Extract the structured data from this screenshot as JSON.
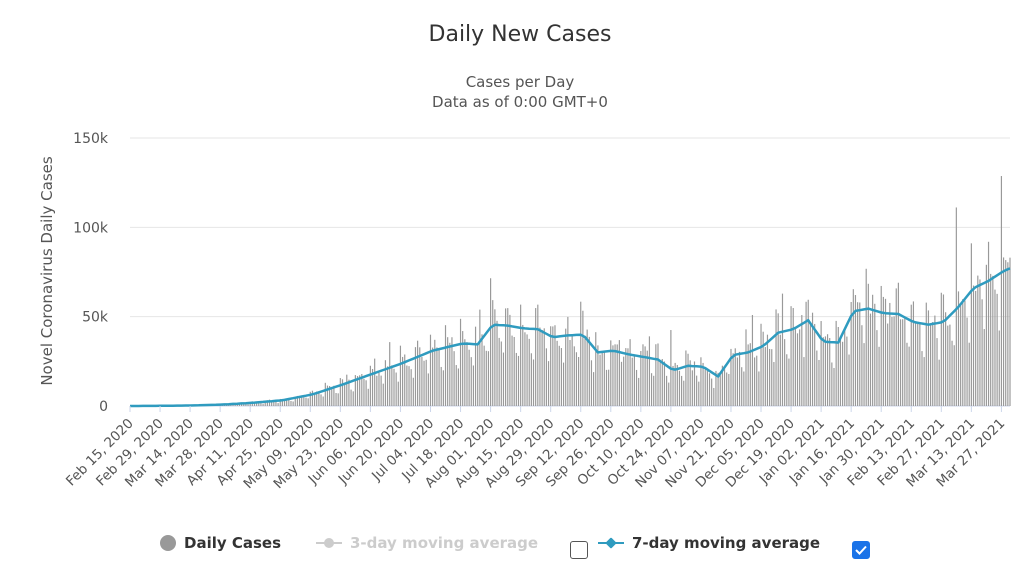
{
  "chart_data": {
    "type": "bar",
    "title": "Daily New Cases",
    "subtitle_line1": "Cases per Day",
    "subtitle_line2": "Data as of 0:00 GMT+0",
    "ylabel": "Novel Coronavirus Daily Cases",
    "xlabel": "",
    "ylim": [
      0,
      150000
    ],
    "y_ticks": [
      "0",
      "50k",
      "100k",
      "150k"
    ],
    "y_tick_values": [
      0,
      50000,
      100000,
      150000
    ],
    "grid": true,
    "x_start": "2020-02-15",
    "x_end": "2021-03-31",
    "x_ticks": [
      "Feb 15, 2020",
      "Feb 29, 2020",
      "Mar 14, 2020",
      "Mar 28, 2020",
      "Apr 11, 2020",
      "Apr 25, 2020",
      "May 09, 2020",
      "May 23, 2020",
      "Jun 06, 2020",
      "Jun 20, 2020",
      "Jul 04, 2020",
      "Jul 18, 2020",
      "Aug 01, 2020",
      "Aug 15, 2020",
      "Aug 29, 2020",
      "Sep 12, 2020",
      "Sep 26, 2020",
      "Oct 10, 2020",
      "Oct 24, 2020",
      "Nov 07, 2020",
      "Nov 21, 2020",
      "Dec 05, 2020",
      "Dec 19, 2020",
      "Jan 02, 2021",
      "Jan 16, 2021",
      "Jan 30, 2021",
      "Feb 13, 2021",
      "Feb 27, 2021",
      "Mar 13, 2021",
      "Mar 27, 2021"
    ],
    "moving_average_7day": {
      "dates": [
        "2020-02-15",
        "2020-03-01",
        "2020-03-15",
        "2020-03-29",
        "2020-04-12",
        "2020-04-26",
        "2020-05-10",
        "2020-05-24",
        "2020-06-07",
        "2020-06-21",
        "2020-07-05",
        "2020-07-19",
        "2020-07-26",
        "2020-08-02",
        "2020-08-09",
        "2020-08-16",
        "2020-08-23",
        "2020-08-30",
        "2020-09-06",
        "2020-09-13",
        "2020-09-20",
        "2020-09-27",
        "2020-10-04",
        "2020-10-11",
        "2020-10-18",
        "2020-10-25",
        "2020-11-01",
        "2020-11-08",
        "2020-11-15",
        "2020-11-22",
        "2020-11-29",
        "2020-12-06",
        "2020-12-13",
        "2020-12-20",
        "2020-12-27",
        "2021-01-03",
        "2021-01-10",
        "2021-01-17",
        "2021-01-24",
        "2021-01-31",
        "2021-02-07",
        "2021-02-14",
        "2021-02-21",
        "2021-02-28",
        "2021-03-07",
        "2021-03-14",
        "2021-03-21",
        "2021-03-28",
        "2021-03-31"
      ],
      "values": [
        0,
        100,
        300,
        800,
        1800,
        3200,
        6500,
        12000,
        18000,
        24000,
        31000,
        35000,
        34500,
        45500,
        45000,
        43500,
        43000,
        38500,
        39500,
        40000,
        30000,
        31000,
        29000,
        27500,
        26000,
        20000,
        22500,
        22000,
        16500,
        28500,
        30000,
        33500,
        41000,
        43000,
        48000,
        36000,
        35500,
        53000,
        54500,
        52000,
        51500,
        47000,
        45500,
        47000,
        55500,
        66000,
        70000,
        75500,
        77000
      ]
    },
    "daily_bar_count": 411
  },
  "legend": {
    "daily_label": "Daily Cases",
    "ma3_label": "3-day moving average",
    "ma7_label": "7-day moving average",
    "ma3_checked": false,
    "ma7_checked": true
  },
  "colors": {
    "bars": "#999999",
    "ma7_line": "#2f9bbf",
    "ma3_line": "#cccccc",
    "grid": "#e6e6e6",
    "checkbox_on": "#1a73e8"
  }
}
